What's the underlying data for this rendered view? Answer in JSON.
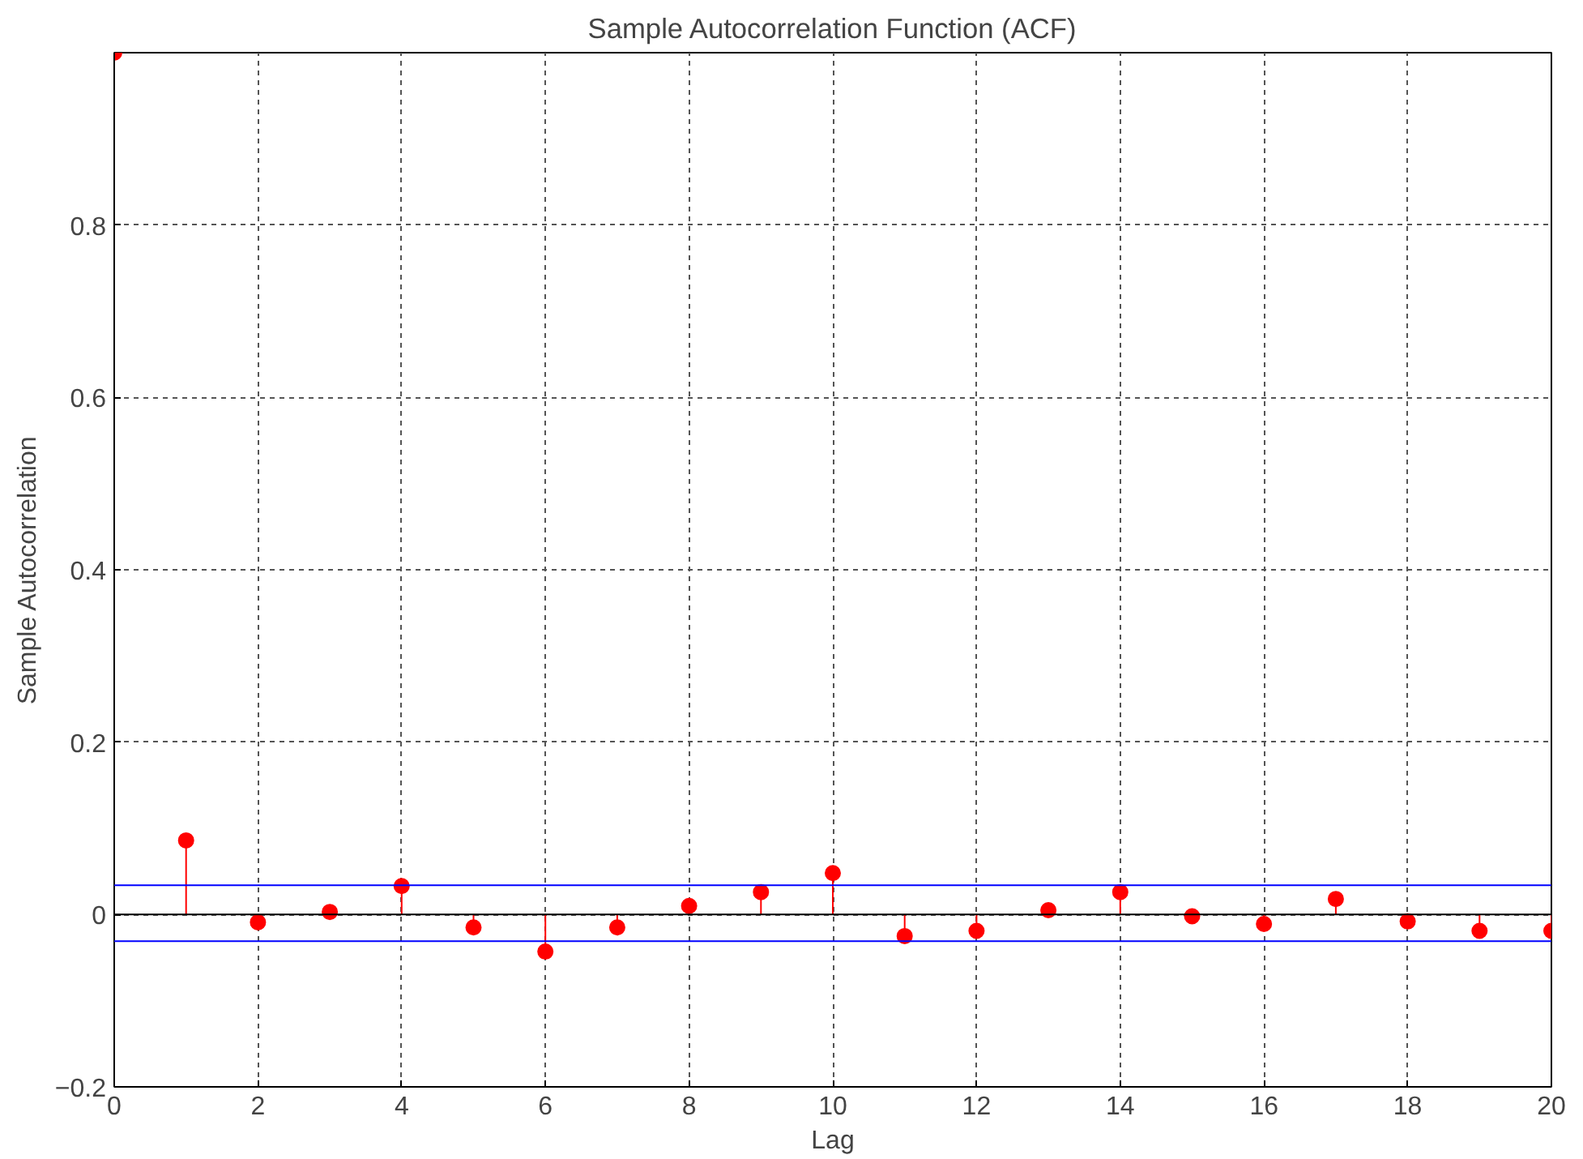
{
  "chart_data": {
    "type": "lollipop",
    "title": "Sample Autocorrelation Function (ACF)",
    "xlabel": "Lag",
    "ylabel": "Sample Autocorrelation",
    "x": [
      0,
      1,
      2,
      3,
      4,
      5,
      6,
      7,
      8,
      9,
      10,
      11,
      12,
      13,
      14,
      15,
      16,
      17,
      18,
      19,
      20
    ],
    "values": [
      1,
      0.086,
      -0.009,
      0.003,
      0.033,
      -0.015,
      -0.043,
      -0.015,
      0.01,
      0.026,
      0.048,
      -0.025,
      -0.019,
      0.005,
      0.026,
      -0.002,
      -0.011,
      0.018,
      -0.008,
      -0.019,
      -0.019
    ],
    "color": "#ff0000",
    "marker": "circle",
    "xlim": [
      0,
      20
    ],
    "ylim": [
      -0.2,
      1
    ],
    "xticks": [
      0,
      2,
      4,
      6,
      8,
      10,
      12,
      14,
      16,
      18,
      20
    ],
    "yticks": [
      -0.2,
      0,
      0.2,
      0.4,
      0.6,
      0.8
    ],
    "grid": true,
    "ref_lines": [
      {
        "axis": "y",
        "value": 0,
        "color": "#000000"
      },
      {
        "axis": "y",
        "value": 0.034,
        "color": "#0000ff"
      },
      {
        "axis": "y",
        "value": -0.031,
        "color": "#0000ff"
      }
    ]
  }
}
